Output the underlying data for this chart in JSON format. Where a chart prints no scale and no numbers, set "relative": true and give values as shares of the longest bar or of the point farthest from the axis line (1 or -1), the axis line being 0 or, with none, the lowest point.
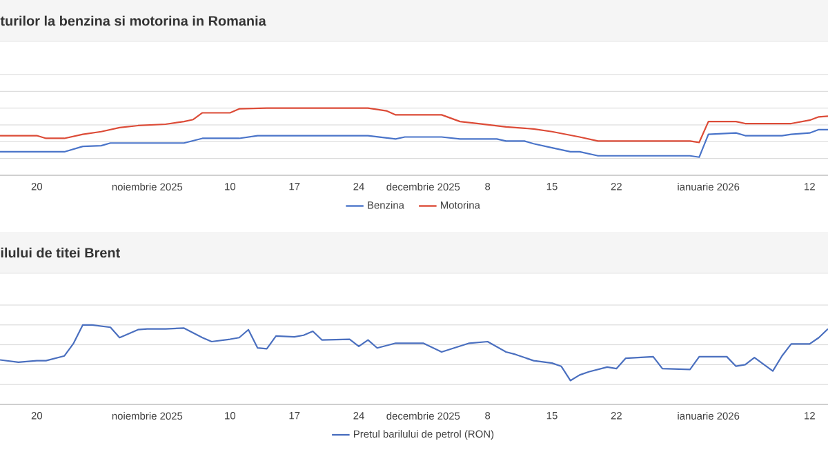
{
  "chart_data": [
    {
      "type": "line",
      "title": "turilor la benzina si motorina in Romania",
      "relative": true,
      "grid": "y",
      "legend": "bottom",
      "tick_labels": "x",
      "line_style": "solid",
      "xlim": [
        "2025-10-16",
        "2026-01-14"
      ],
      "xticks": [
        {
          "value": "2025-10-20",
          "label": "20"
        },
        {
          "value": "2025-11-01",
          "label": "noiembrie 2025"
        },
        {
          "value": "2025-11-10",
          "label": "10"
        },
        {
          "value": "2025-11-17",
          "label": "17"
        },
        {
          "value": "2025-11-24",
          "label": "24"
        },
        {
          "value": "2025-12-01",
          "label": "decembrie 2025"
        },
        {
          "value": "2025-12-08",
          "label": "8"
        },
        {
          "value": "2025-12-15",
          "label": "15"
        },
        {
          "value": "2025-12-22",
          "label": "22"
        },
        {
          "value": "2026-01-01",
          "label": "ianuarie 2026"
        },
        {
          "value": "2026-01-12",
          "label": "12"
        }
      ],
      "series": [
        {
          "name": "Benzina",
          "color": "#4a74c9",
          "x": [
            "2025-10-16",
            "2025-10-23",
            "2025-10-25",
            "2025-10-27",
            "2025-10-28",
            "2025-11-05",
            "2025-11-07",
            "2025-11-11",
            "2025-11-13",
            "2025-11-25",
            "2025-11-28",
            "2025-11-29",
            "2025-12-03",
            "2025-12-05",
            "2025-12-09",
            "2025-12-10",
            "2025-12-12",
            "2025-12-13",
            "2025-12-15",
            "2025-12-17",
            "2025-12-18",
            "2025-12-20",
            "2025-12-30",
            "2025-12-31",
            "2026-01-01",
            "2026-01-04",
            "2026-01-05",
            "2026-01-09",
            "2026-01-10",
            "2026-01-12",
            "2026-01-13",
            "2026-01-14"
          ],
          "values": [
            0.35,
            0.35,
            0.43,
            0.44,
            0.48,
            0.48,
            0.55,
            0.55,
            0.59,
            0.59,
            0.54,
            0.57,
            0.57,
            0.54,
            0.54,
            0.51,
            0.51,
            0.47,
            0.41,
            0.35,
            0.35,
            0.29,
            0.29,
            0.27,
            0.61,
            0.63,
            0.59,
            0.59,
            0.61,
            0.63,
            0.68,
            0.68
          ]
        },
        {
          "name": "Motorina",
          "color": "#dc4b37",
          "x": [
            "2025-10-16",
            "2025-10-20",
            "2025-10-21",
            "2025-10-23",
            "2025-10-25",
            "2025-10-27",
            "2025-10-29",
            "2025-10-31",
            "2025-11-03",
            "2025-11-05",
            "2025-11-06",
            "2025-11-07",
            "2025-11-10",
            "2025-11-11",
            "2025-11-14",
            "2025-11-25",
            "2025-11-27",
            "2025-11-28",
            "2025-12-03",
            "2025-12-05",
            "2025-12-07",
            "2025-12-10",
            "2025-12-13",
            "2025-12-15",
            "2025-12-18",
            "2025-12-20",
            "2025-12-30",
            "2025-12-31",
            "2026-01-01",
            "2026-01-04",
            "2026-01-05",
            "2026-01-10",
            "2026-01-12",
            "2026-01-13",
            "2026-01-14"
          ],
          "values": [
            0.59,
            0.59,
            0.55,
            0.55,
            0.61,
            0.65,
            0.71,
            0.74,
            0.76,
            0.8,
            0.83,
            0.93,
            0.93,
            0.99,
            1.0,
            1.0,
            0.96,
            0.9,
            0.9,
            0.8,
            0.77,
            0.72,
            0.69,
            0.65,
            0.57,
            0.51,
            0.51,
            0.49,
            0.8,
            0.8,
            0.77,
            0.77,
            0.82,
            0.87,
            0.88
          ]
        }
      ]
    },
    {
      "type": "line",
      "title": "ilului de titei Brent",
      "relative": true,
      "grid": "y",
      "legend": "bottom",
      "tick_labels": "x",
      "line_style": "solid",
      "xlim": [
        "2025-10-16",
        "2026-01-14"
      ],
      "xticks": [
        {
          "value": "2025-10-20",
          "label": "20"
        },
        {
          "value": "2025-11-01",
          "label": "noiembrie 2025"
        },
        {
          "value": "2025-11-10",
          "label": "10"
        },
        {
          "value": "2025-11-17",
          "label": "17"
        },
        {
          "value": "2025-11-24",
          "label": "24"
        },
        {
          "value": "2025-12-01",
          "label": "decembrie 2025"
        },
        {
          "value": "2025-12-08",
          "label": "8"
        },
        {
          "value": "2025-12-15",
          "label": "15"
        },
        {
          "value": "2025-12-22",
          "label": "22"
        },
        {
          "value": "2026-01-01",
          "label": "ianuarie 2026"
        },
        {
          "value": "2026-01-12",
          "label": "12"
        }
      ],
      "series": [
        {
          "name": "Pretul barilului de petrol (RON)",
          "color": "#4a6fbf",
          "x": [
            "2025-10-16",
            "2025-10-18",
            "2025-10-20",
            "2025-10-21",
            "2025-10-23",
            "2025-10-24",
            "2025-10-25",
            "2025-10-26",
            "2025-10-28",
            "2025-10-29",
            "2025-10-31",
            "2025-11-01",
            "2025-11-03",
            "2025-11-05",
            "2025-11-07",
            "2025-11-08",
            "2025-11-10",
            "2025-11-11",
            "2025-11-12",
            "2025-11-13",
            "2025-11-14",
            "2025-11-15",
            "2025-11-17",
            "2025-11-18",
            "2025-11-19",
            "2025-11-20",
            "2025-11-23",
            "2025-11-24",
            "2025-11-25",
            "2025-11-26",
            "2025-11-28",
            "2025-12-01",
            "2025-12-03",
            "2025-12-06",
            "2025-12-08",
            "2025-12-10",
            "2025-12-11",
            "2025-12-13",
            "2025-12-15",
            "2025-12-16",
            "2025-12-17",
            "2025-12-18",
            "2025-12-19",
            "2025-12-21",
            "2025-12-22",
            "2025-12-23",
            "2025-12-26",
            "2025-12-27",
            "2025-12-30",
            "2025-12-31",
            "2026-01-03",
            "2026-01-04",
            "2026-01-05",
            "2026-01-06",
            "2026-01-08",
            "2026-01-09",
            "2026-01-10",
            "2026-01-12",
            "2026-01-13",
            "2026-01-14"
          ],
          "values": [
            0.56,
            0.53,
            0.55,
            0.55,
            0.61,
            0.77,
            1.0,
            1.0,
            0.97,
            0.84,
            0.94,
            0.95,
            0.95,
            0.96,
            0.84,
            0.79,
            0.82,
            0.84,
            0.94,
            0.71,
            0.7,
            0.86,
            0.85,
            0.87,
            0.92,
            0.81,
            0.82,
            0.73,
            0.81,
            0.71,
            0.77,
            0.77,
            0.66,
            0.77,
            0.79,
            0.66,
            0.63,
            0.55,
            0.52,
            0.48,
            0.3,
            0.37,
            0.41,
            0.47,
            0.45,
            0.58,
            0.6,
            0.45,
            0.44,
            0.6,
            0.6,
            0.48,
            0.5,
            0.59,
            0.42,
            0.61,
            0.76,
            0.76,
            0.84,
            0.95
          ]
        }
      ]
    }
  ]
}
